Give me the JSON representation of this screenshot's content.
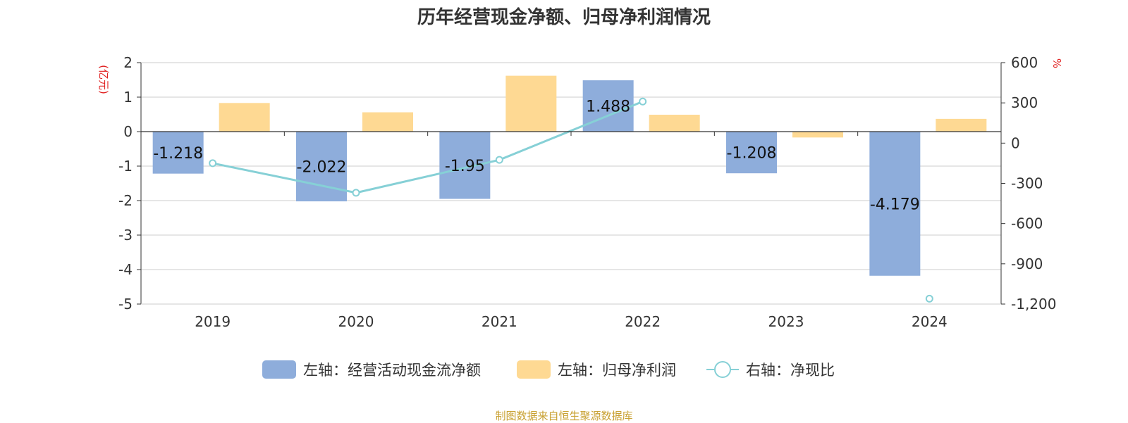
{
  "title": "历年经营现金净额、归母净利润情况",
  "source": "制图数据来自恒生聚源数据库",
  "colors": {
    "cash_bar": "#8EADDB",
    "profit_bar": "#FED993",
    "ratio_line": "#86D0D6",
    "unit_text": "#E02020",
    "source_text": "#C8A030",
    "axis": "#333333",
    "grid": "#CCCCCC"
  },
  "chart_data": {
    "type": "bar",
    "title": "历年经营现金净额、归母净利润情况",
    "categories": [
      "2019",
      "2020",
      "2021",
      "2022",
      "2023",
      "2024"
    ],
    "left_axis": {
      "unit": "(亿元)",
      "ylim": [
        -5,
        2
      ],
      "ticks": [
        "2",
        "1",
        "0",
        "-1",
        "-2",
        "-3",
        "-4",
        "-5"
      ]
    },
    "right_axis": {
      "unit": "%",
      "ylim": [
        -1200,
        600
      ],
      "ticks": [
        "600",
        "300",
        "0",
        "-300",
        "-600",
        "-900",
        "-1,200"
      ]
    },
    "grid": true,
    "legend_position": "bottom",
    "series": [
      {
        "name": "左轴：经营活动现金流净额",
        "type": "bar",
        "axis": "left",
        "values": [
          -1.218,
          -2.022,
          -1.95,
          1.488,
          -1.208,
          -4.179
        ],
        "labels": [
          "-1.218",
          "-2.022",
          "-1.95",
          "1.488",
          "-1.208",
          "-4.179"
        ]
      },
      {
        "name": "左轴：归母净利润",
        "type": "bar",
        "axis": "left",
        "values": [
          0.83,
          0.56,
          1.62,
          0.49,
          -0.17,
          0.37
        ]
      },
      {
        "name": "右轴：净现比",
        "type": "line",
        "axis": "right",
        "values": [
          -150,
          -370,
          -125,
          310,
          null,
          -1160
        ]
      }
    ]
  }
}
